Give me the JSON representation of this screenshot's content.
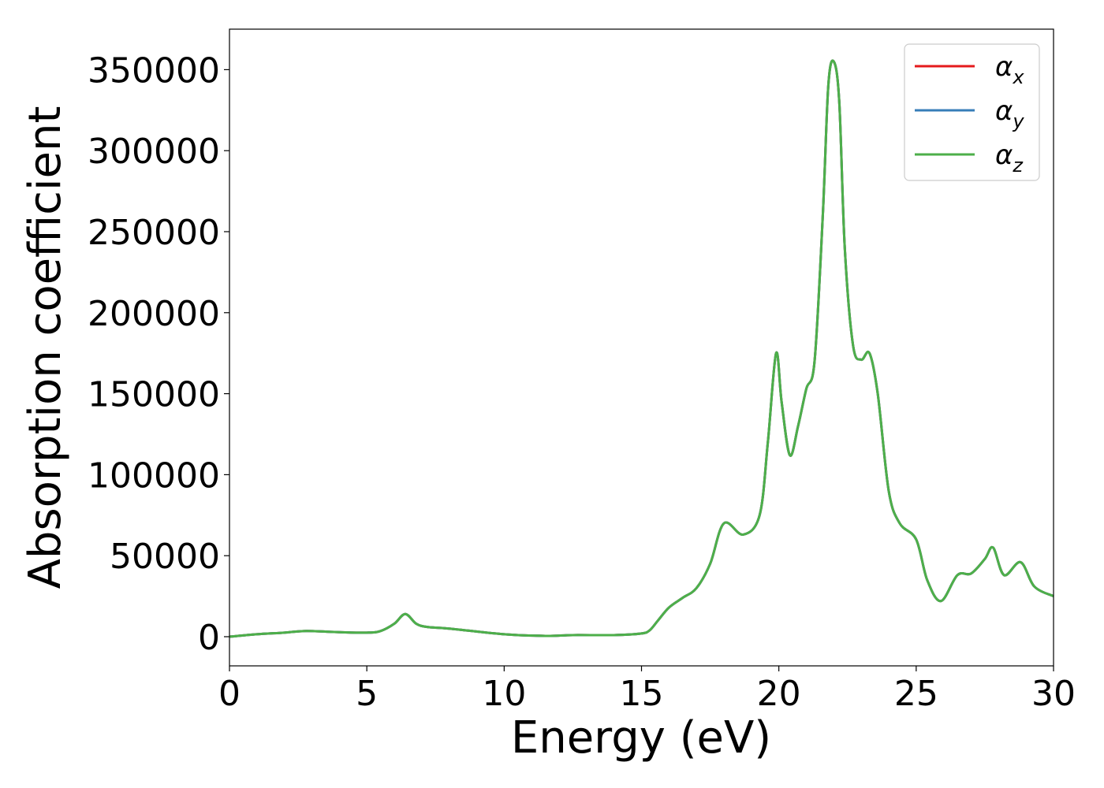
{
  "chart_data": {
    "type": "line",
    "xlabel": "Energy (eV)",
    "ylabel": "Absorption coefficient",
    "xlim": [
      0,
      30
    ],
    "ylim": [
      -18000,
      375000
    ],
    "x_ticks": [
      0,
      5,
      10,
      15,
      20,
      25,
      30
    ],
    "y_ticks": [
      0,
      50000,
      100000,
      150000,
      200000,
      250000,
      300000,
      350000
    ],
    "legend_position": "top-right",
    "series": [
      {
        "name": "α",
        "subscript": "x",
        "color": "#e41a1c",
        "values_ref": "shared"
      },
      {
        "name": "α",
        "subscript": "y",
        "color": "#377eb8",
        "values_ref": "shared"
      },
      {
        "name": "α",
        "subscript": "z",
        "color": "#4daf4a",
        "values_ref": "shared"
      }
    ],
    "x": [
      0,
      1,
      2,
      2.8,
      4,
      5,
      5.5,
      6,
      6.4,
      6.8,
      7.2,
      8,
      10,
      11.5,
      12.5,
      14,
      15,
      15.3,
      15.6,
      16,
      16.5,
      17,
      17.5,
      18,
      18.7,
      19.3,
      19.6,
      19.9,
      20.1,
      20.4,
      20.7,
      21,
      21.3,
      21.6,
      21.8,
      22.0,
      22.2,
      22.4,
      22.7,
      23.0,
      23.3,
      23.6,
      24,
      24.4,
      25,
      25.4,
      25.9,
      26.5,
      27,
      27.5,
      27.8,
      28.2,
      28.8,
      29.3,
      30
    ],
    "y": [
      0,
      1500,
      2500,
      3500,
      2800,
      2500,
      3500,
      8000,
      14000,
      8000,
      6000,
      5000,
      1500,
      500,
      1000,
      1000,
      2000,
      4000,
      10000,
      18000,
      24000,
      30000,
      45000,
      70000,
      63000,
      75000,
      120000,
      175000,
      145000,
      112000,
      130000,
      153000,
      170000,
      260000,
      340000,
      355000,
      330000,
      240000,
      180000,
      171000,
      175000,
      150000,
      90000,
      70000,
      60000,
      35000,
      22000,
      38000,
      39000,
      48000,
      55000,
      38000,
      46000,
      31000,
      25000
    ]
  }
}
